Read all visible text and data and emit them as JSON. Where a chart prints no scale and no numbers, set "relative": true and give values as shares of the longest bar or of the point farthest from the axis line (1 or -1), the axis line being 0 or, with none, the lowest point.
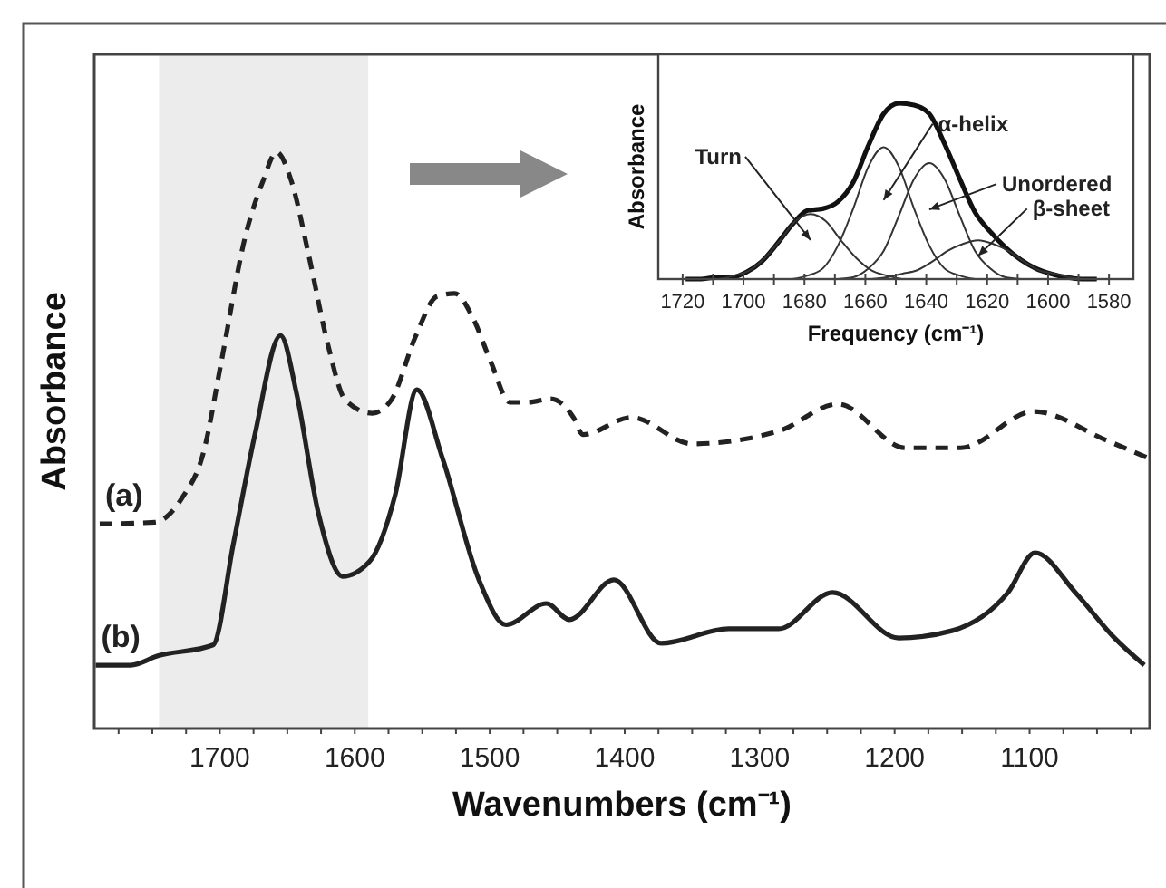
{
  "chart_data": [
    {
      "type": "line",
      "relative": true,
      "xlabel": "Wavenumbers (cm⁻¹)",
      "ylabel": "Absorbance",
      "xlim": [
        1793,
        1011
      ],
      "xticks": [
        {
          "value": 1775,
          "label": null
        },
        {
          "value": 1750,
          "label": null
        },
        {
          "value": 1725,
          "label": null
        },
        1700,
        {
          "value": 1675,
          "label": null
        },
        {
          "value": 1650,
          "label": null
        },
        {
          "value": 1625,
          "label": null
        },
        1600,
        {
          "value": 1575,
          "label": null
        },
        {
          "value": 1550,
          "label": null
        },
        {
          "value": 1525,
          "label": null
        },
        1500,
        {
          "value": 1475,
          "label": null
        },
        {
          "value": 1450,
          "label": null
        },
        {
          "value": 1425,
          "label": null
        },
        1400,
        {
          "value": 1375,
          "label": null
        },
        {
          "value": 1350,
          "label": null
        },
        {
          "value": 1325,
          "label": null
        },
        1300,
        {
          "value": 1275,
          "label": null
        },
        {
          "value": 1250,
          "label": null
        },
        {
          "value": 1225,
          "label": null
        },
        1200,
        {
          "value": 1175,
          "label": null
        },
        {
          "value": 1150,
          "label": null
        },
        {
          "value": 1125,
          "label": null
        },
        1100,
        {
          "value": 1075,
          "label": null
        },
        {
          "value": 1050,
          "label": null
        },
        {
          "value": 1025,
          "label": null
        }
      ],
      "bands": [
        {
          "axis": "x",
          "from": 1745,
          "to": 1590,
          "color": "#ececec"
        }
      ],
      "series": [
        {
          "name": "(a)",
          "color": "#222222",
          "line_style": "dashed",
          "x": [
            1789,
            1748,
            1728,
            1712,
            1699,
            1681,
            1668,
            1658,
            1647,
            1634,
            1620,
            1607,
            1587,
            1573,
            1555,
            1539,
            1526,
            1512,
            1499,
            1485,
            1472,
            1455,
            1438,
            1431,
            1395,
            1350,
            1286,
            1242,
            1192,
            1151,
            1097,
            1043,
            1012
          ],
          "values": [
            0.355,
            0.358,
            0.4,
            0.48,
            0.635,
            0.855,
            0.95,
            1.0,
            0.95,
            0.82,
            0.667,
            0.57,
            0.547,
            0.57,
            0.68,
            0.75,
            0.755,
            0.71,
            0.635,
            0.566,
            0.566,
            0.572,
            0.54,
            0.51,
            0.54,
            0.494,
            0.516,
            0.563,
            0.487,
            0.487,
            0.55,
            0.5,
            0.469
          ]
        },
        {
          "name": "(b)",
          "color": "#222222",
          "line_style": "solid",
          "x": [
            1792,
            1766,
            1746,
            1705,
            1690,
            1674,
            1655,
            1643,
            1627,
            1609,
            1589,
            1570,
            1554,
            1535,
            1508,
            1488,
            1458,
            1441,
            1408,
            1373,
            1323,
            1286,
            1246,
            1197,
            1157,
            1116,
            1096,
            1066,
            1037,
            1015
          ],
          "values": [
            0.11,
            0.11,
            0.126,
            0.145,
            0.32,
            0.51,
            0.682,
            0.58,
            0.374,
            0.264,
            0.29,
            0.406,
            0.588,
            0.469,
            0.258,
            0.18,
            0.217,
            0.189,
            0.258,
            0.148,
            0.173,
            0.173,
            0.236,
            0.157,
            0.17,
            0.236,
            0.305,
            0.236,
            0.157,
            0.11
          ]
        }
      ]
    },
    {
      "type": "line",
      "relative": true,
      "xlabel": "Frequency (cm⁻¹)",
      "ylabel": "Absorbance",
      "xlim": [
        1728,
        1572
      ],
      "xticks": [
        1720,
        {
          "value": 1710,
          "label": null
        },
        1700,
        {
          "value": 1690,
          "label": null
        },
        1680,
        {
          "value": 1670,
          "label": null
        },
        1660,
        {
          "value": 1650,
          "label": null
        },
        1640,
        {
          "value": 1630,
          "label": null
        },
        1620,
        {
          "value": 1610,
          "label": null
        },
        1600,
        {
          "value": 1590,
          "label": null
        },
        1580
      ],
      "series": [
        {
          "color": "#111111",
          "x": [
            1719,
            1714,
            1709,
            1704,
            1699,
            1694,
            1689,
            1684,
            1679,
            1674,
            1669,
            1664,
            1659,
            1654,
            1649,
            1644,
            1639,
            1634,
            1629,
            1624,
            1619,
            1614,
            1609,
            1604,
            1599,
            1594,
            1589,
            1584
          ],
          "values": [
            0,
            0,
            0.01,
            0.01,
            0.04,
            0.1,
            0.2,
            0.31,
            0.39,
            0.4,
            0.44,
            0.55,
            0.76,
            0.94,
            1.0,
            0.99,
            0.94,
            0.77,
            0.57,
            0.38,
            0.27,
            0.18,
            0.11,
            0.06,
            0.03,
            0.01,
            0,
            0
          ]
        },
        {
          "name": "Turn",
          "color": "#333333",
          "x": [
            1708,
            1703,
            1698,
            1693,
            1688,
            1683,
            1678,
            1673,
            1668,
            1663,
            1658,
            1653,
            1648
          ],
          "values": [
            0,
            0.02,
            0.05,
            0.12,
            0.22,
            0.33,
            0.37,
            0.33,
            0.22,
            0.12,
            0.05,
            0.02,
            0
          ]
        },
        {
          "name": "α-helix",
          "color": "#333333",
          "x": [
            1684,
            1679,
            1674,
            1669,
            1664,
            1659,
            1654,
            1649,
            1644,
            1639,
            1634,
            1629,
            1624
          ],
          "values": [
            0,
            0.02,
            0.06,
            0.19,
            0.4,
            0.64,
            0.75,
            0.64,
            0.4,
            0.19,
            0.06,
            0.02,
            0
          ]
        },
        {
          "name": "Unordered",
          "color": "#333333",
          "x": [
            1669,
            1664,
            1659,
            1654,
            1649,
            1644,
            1639,
            1634,
            1629,
            1624,
            1619,
            1614,
            1609
          ],
          "values": [
            0,
            0.01,
            0.06,
            0.16,
            0.36,
            0.57,
            0.66,
            0.57,
            0.36,
            0.16,
            0.06,
            0.01,
            0
          ]
        },
        {
          "name": "β-sheet",
          "color": "#333333",
          "x": [
            1658,
            1653,
            1648,
            1643,
            1638,
            1633,
            1628,
            1623,
            1618,
            1613,
            1608,
            1603,
            1598,
            1593,
            1588
          ],
          "values": [
            0,
            0.01,
            0.03,
            0.05,
            0.1,
            0.16,
            0.2,
            0.22,
            0.2,
            0.16,
            0.1,
            0.05,
            0.03,
            0.01,
            0
          ]
        }
      ]
    }
  ]
}
